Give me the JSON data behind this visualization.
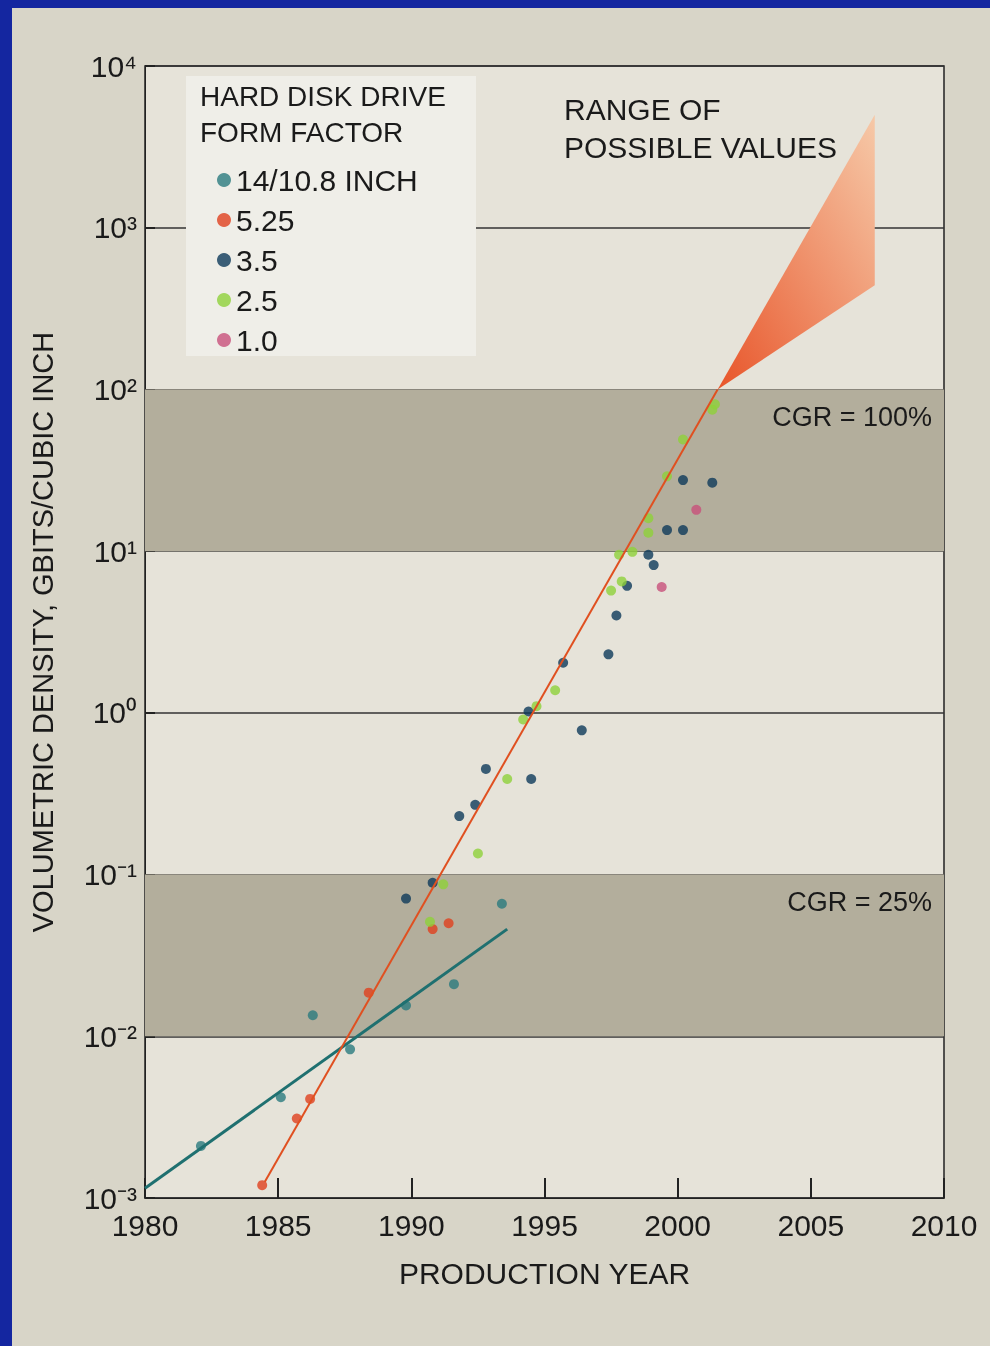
{
  "chart_data": {
    "type": "scatter",
    "xlabel": "PRODUCTION YEAR",
    "ylabel": "VOLUMETRIC DENSITY, GBITS/CUBIC INCH",
    "legend_title": "HARD DISK DRIVE FORM FACTOR",
    "xlim": [
      1980,
      2010
    ],
    "xticks": [
      1980,
      1985,
      1990,
      1995,
      2000,
      2005,
      2010
    ],
    "ylim": [
      0.001,
      10000
    ],
    "yticks": [
      {
        "value": 0.001,
        "label": "10⁻³"
      },
      {
        "value": 0.01,
        "label": "10⁻²"
      },
      {
        "value": 0.1,
        "label": "10⁻¹"
      },
      {
        "value": 1,
        "label": "10⁰"
      },
      {
        "value": 10,
        "label": "10¹"
      },
      {
        "value": 100,
        "label": "10²"
      },
      {
        "value": 1000,
        "label": "10³"
      },
      {
        "value": 10000,
        "label": "10⁴"
      }
    ],
    "log": "y",
    "grid": "y",
    "legend": "top left",
    "marker": "circle",
    "series": [
      {
        "name": "14/10.8 INCH",
        "color": "#2a7a7e",
        "x": [
          1982.1,
          1985.1,
          1986.3,
          1987.7,
          1989.8,
          1991.6,
          1993.4
        ],
        "values": [
          0.0021,
          0.0042,
          0.0135,
          0.0083,
          0.0155,
          0.021,
          0.066
        ]
      },
      {
        "name": "5.25",
        "color": "#e0401e",
        "x": [
          1984.4,
          1985.7,
          1986.2,
          1988.4,
          1990.8,
          1991.4
        ],
        "values": [
          0.0012,
          0.0031,
          0.0041,
          0.0186,
          0.046,
          0.05
        ]
      },
      {
        "name": "3.5",
        "color": "#0e3a5a",
        "x": [
          1989.8,
          1990.8,
          1991.8,
          1992.4,
          1992.8,
          1994.5,
          1994.4,
          1995.7,
          1996.4,
          1997.4,
          1997.7,
          1998.1,
          1998.9,
          1999.1,
          1999.6,
          2000.2,
          2000.2,
          2001.3
        ],
        "values": [
          0.071,
          0.089,
          0.23,
          0.27,
          0.45,
          0.39,
          1.02,
          2.04,
          0.78,
          2.3,
          4.0,
          6.1,
          9.5,
          8.2,
          13.5,
          13.5,
          27.5,
          26.5
        ]
      },
      {
        "name": "2.5",
        "color": "#8fd13a",
        "x": [
          1990.7,
          1991.2,
          1992.5,
          1993.6,
          1994.2,
          1994.7,
          1995.4,
          1997.5,
          1997.9,
          1997.8,
          1998.3,
          1998.9,
          1998.9,
          1999.6,
          2000.2,
          2001.3,
          2001.4
        ],
        "values": [
          0.051,
          0.087,
          0.135,
          0.39,
          0.91,
          1.1,
          1.38,
          5.7,
          6.5,
          9.5,
          9.9,
          13,
          16,
          29,
          49,
          75,
          81
        ]
      },
      {
        "name": "1.0",
        "color": "#c8507a",
        "x": [
          1999.4,
          2000.7
        ],
        "values": [
          6.0,
          18
        ]
      },
      {
        "type": "line",
        "marker": "none",
        "color": "#1f7070",
        "x": [
          1980,
          1993.6
        ],
        "values": [
          0.00115,
          0.046
        ]
      },
      {
        "type": "line",
        "marker": "none",
        "color": "#e05020",
        "x": [
          1984.5,
          2001.5
        ],
        "values": [
          0.00126,
          100
        ]
      },
      {
        "type": "area",
        "color": "#e8552a",
        "x": [
          2001.5,
          2007.4
        ],
        "values": [
          null,
          null
        ],
        "lower": [
          100,
          440
        ],
        "upper": [
          100,
          5000
        ]
      }
    ],
    "bands": [
      {
        "axis": "y",
        "from": 10,
        "to": 100,
        "label": "CGR = 100%",
        "color": "#b3ae9c"
      },
      {
        "axis": "y",
        "from": 0.01,
        "to": 0.1,
        "label": "CGR = 25%",
        "color": "#b3ae9c"
      }
    ],
    "annotations": [
      "RANGE OF POSSIBLE VALUES"
    ]
  }
}
